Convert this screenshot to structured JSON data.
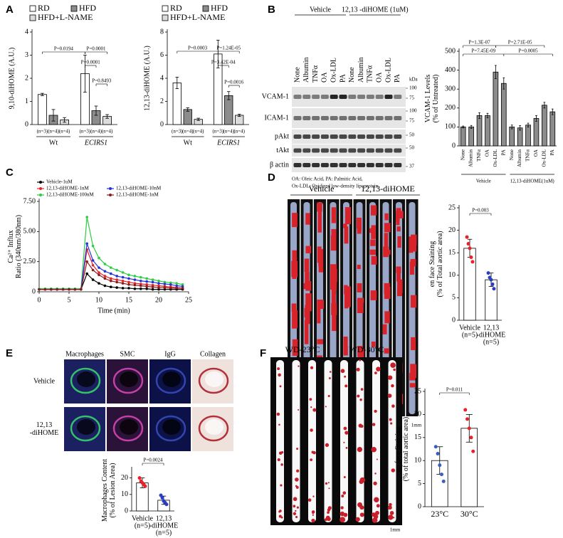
{
  "panel_labels": [
    "A",
    "B",
    "C",
    "D",
    "E",
    "F"
  ],
  "chart_data": [
    {
      "type": "bar",
      "ylabel": "9,10-diHOME (A.U.)",
      "categories": [
        "Wt",
        "ECIRS1"
      ],
      "series": [
        {
          "name": "RD",
          "color": "#ffffff",
          "values": [
            1.3,
            2.2
          ],
          "errors": [
            0.05,
            0.8
          ],
          "n": [
            "(n=3)",
            "(n=3)"
          ]
        },
        {
          "name": "HFD",
          "color": "#8c8c8c",
          "values": [
            0.4,
            0.6
          ],
          "errors": [
            0.25,
            0.2
          ],
          "n": [
            "(n=4)",
            "(n=4)"
          ]
        },
        {
          "name": "HFD+L-NAME",
          "color": "#dcdcdc",
          "values": [
            0.2,
            0.35
          ],
          "errors": [
            0.1,
            0.08
          ],
          "n": [
            "(n=4)",
            "(n=4)"
          ]
        }
      ],
      "ylim": [
        0,
        4
      ],
      "yticks": [
        0,
        1,
        2,
        3,
        4
      ],
      "annotations": [
        "P=0.0194",
        "P=0.0001",
        "P=0.0001",
        "P=0.8493"
      ]
    },
    {
      "type": "bar",
      "ylabel": "12,13-diHOME (A.U.)",
      "categories": [
        "Wt",
        "ECIRS1"
      ],
      "series": [
        {
          "name": "RD",
          "color": "#ffffff",
          "values": [
            3.6,
            6.1
          ],
          "errors": [
            0.5,
            1.2
          ],
          "n": [
            "(n=3)",
            "(n=3)"
          ]
        },
        {
          "name": "HFD",
          "color": "#8c8c8c",
          "values": [
            1.3,
            2.5
          ],
          "errors": [
            0.15,
            0.35
          ],
          "n": [
            "(n=4)",
            "(n=4)"
          ]
        },
        {
          "name": "HFD+L-NAME",
          "color": "#dcdcdc",
          "values": [
            0.45,
            0.8
          ],
          "errors": [
            0.1,
            0.1
          ],
          "n": [
            "(n=4)",
            "(n=4)"
          ]
        }
      ],
      "ylim": [
        0,
        8
      ],
      "yticks": [
        0,
        2,
        4,
        6,
        8
      ],
      "annotations": [
        "P=0.0003",
        "P=1.24E-05",
        "P=3.42E-04",
        "P=0.0016"
      ]
    },
    {
      "type": "bar",
      "ylabel": [
        "VCAM-1 Levels",
        "(% of Untreated)"
      ],
      "categories": [
        "None",
        "Albumin",
        "TNFα",
        "OA",
        "Ox-LDL",
        "PA",
        "None",
        "Albumin",
        "TNFα",
        "OA",
        "Ox-LDL",
        "PA"
      ],
      "values": [
        100,
        100,
        160,
        160,
        390,
        330,
        100,
        95,
        110,
        145,
        215,
        180
      ],
      "errors": [
        5,
        8,
        15,
        12,
        35,
        30,
        10,
        12,
        10,
        15,
        15,
        15
      ],
      "groups": [
        "Vehicle",
        "12,13-diHOME(1uM)"
      ],
      "color": "#8c8c8c",
      "ylim": [
        0,
        500
      ],
      "yticks": [
        0,
        100,
        200,
        300,
        400,
        500
      ],
      "annotations": [
        "P=1.3E-07",
        "P=7.45E-09",
        "P=2.71E-05",
        "P=0.0005"
      ]
    },
    {
      "type": "line",
      "xlabel": "Time (min)",
      "ylabel": [
        "Ca²⁺ Influx",
        "Ratio (340nm/380nm)"
      ],
      "x": [
        0,
        1,
        2,
        3,
        4,
        5,
        6,
        7,
        8,
        9,
        10,
        11,
        12,
        13,
        14,
        15,
        16,
        17,
        18,
        19,
        20,
        21,
        22,
        23,
        24
      ],
      "series": [
        {
          "name": "Vehicle-1uM",
          "color": "#000000",
          "values": [
            0.2,
            0.2,
            0.2,
            0.2,
            0.2,
            0.2,
            0.2,
            0.2,
            1.5,
            1.0,
            0.7,
            0.5,
            0.4,
            0.35,
            0.3,
            0.3,
            0.25,
            0.25,
            0.25,
            0.2,
            0.2,
            0.2,
            0.2,
            0.2,
            0.2
          ]
        },
        {
          "name": "12,13-diHOME-1nM",
          "color": "#e8222a",
          "values": [
            0.2,
            0.2,
            0.2,
            0.2,
            0.2,
            0.2,
            0.2,
            0.2,
            3.5,
            2.2,
            1.6,
            1.3,
            1.1,
            1.0,
            0.9,
            0.8,
            0.7,
            0.65,
            0.6,
            0.55,
            0.5,
            0.45,
            0.4,
            0.35,
            0.3
          ]
        },
        {
          "name": "12,13-diHOME-100nM",
          "color": "#2ecc40",
          "values": [
            0.25,
            0.25,
            0.25,
            0.25,
            0.25,
            0.25,
            0.25,
            0.25,
            6.2,
            3.8,
            2.8,
            2.3,
            2.0,
            1.8,
            1.6,
            1.4,
            1.3,
            1.2,
            1.1,
            1.0,
            0.9,
            0.8,
            0.75,
            0.7,
            0.6
          ]
        },
        {
          "name": "12,13-diHOME-10nM",
          "color": "#2233dd",
          "values": [
            0.2,
            0.2,
            0.2,
            0.2,
            0.2,
            0.2,
            0.2,
            0.2,
            4.0,
            2.6,
            2.0,
            1.7,
            1.5,
            1.3,
            1.2,
            1.1,
            1.0,
            0.9,
            0.85,
            0.8,
            0.7,
            0.65,
            0.6,
            0.5,
            0.45
          ]
        },
        {
          "name": "12,13-diHOME-1nM",
          "color": "#8b1a1a",
          "values": [
            0.2,
            0.2,
            0.2,
            0.2,
            0.2,
            0.2,
            0.2,
            0.2,
            2.5,
            1.8,
            1.4,
            1.1,
            0.9,
            0.8,
            0.7,
            0.6,
            0.55,
            0.5,
            0.45,
            0.4,
            0.35,
            0.35,
            0.3,
            0.3,
            0.3
          ]
        }
      ],
      "xlim": [
        0,
        25
      ],
      "xticks": [
        0,
        5,
        10,
        15,
        20,
        25
      ],
      "ylim": [
        0,
        7.5
      ],
      "yticks": [
        0,
        {
          "value": 2.5,
          "label": "2.50"
        },
        {
          "value": 5,
          "label": "5.00"
        },
        {
          "value": 7.5,
          "label": "7.50"
        }
      ]
    },
    {
      "type": "bar",
      "ylabel": [
        "en face Staining",
        "(% of Total aortic area)"
      ],
      "categories": [
        [
          "Vehicle",
          "(n=5)"
        ],
        [
          "12,13",
          "-diHOME",
          "(n=5)"
        ]
      ],
      "values": [
        16,
        9
      ],
      "errors": [
        2,
        1.5
      ],
      "color": "#ffffff",
      "points": [
        [
          18.5,
          17,
          16,
          14,
          13
        ],
        [
          10.5,
          9.5,
          9,
          8,
          7
        ]
      ],
      "point_colors": [
        "#e8222a",
        "#2a3fbf"
      ],
      "ylim": [
        0,
        25
      ],
      "yticks": [
        0,
        5,
        10,
        15,
        20,
        25
      ],
      "annotations": [
        "P=0.003"
      ]
    },
    {
      "type": "bar",
      "ylabel": [
        "Macrophages Content",
        "(% of Lesion Area)"
      ],
      "categories": [
        [
          "Vehicle",
          "(n=5)"
        ],
        [
          "12,13",
          "-diHOME",
          "(n=5)"
        ]
      ],
      "values": [
        17,
        6.5
      ],
      "errors": [
        3,
        2.5
      ],
      "color": "#ffffff",
      "points": [
        [
          20,
          18,
          17,
          16,
          15
        ],
        [
          9.5,
          8,
          6,
          5,
          4
        ]
      ],
      "point_colors": [
        "#e8222a",
        "#2a3fbf"
      ],
      "ylim": [
        0,
        25
      ],
      "yticks": [
        0,
        10,
        20
      ],
      "annotations": [
        "P=0.0024"
      ]
    },
    {
      "type": "bar",
      "ylabel": [
        "en face Staining",
        "(% of total aortic area)"
      ],
      "categories": [
        "23°C",
        "30°C"
      ],
      "values": [
        10,
        17
      ],
      "errors": [
        3,
        3
      ],
      "color": "#ffffff",
      "points": [
        [
          13,
          11.5,
          9,
          7,
          5.5
        ],
        [
          21,
          19,
          17,
          15,
          12
        ]
      ],
      "point_colors": [
        "#3a5fbf",
        "#e8222a"
      ],
      "ylim": [
        0,
        25
      ],
      "yticks": [
        0,
        5,
        10,
        15,
        20,
        25
      ],
      "annotations": [
        "P=0.011"
      ]
    }
  ],
  "blot": {
    "groups": [
      "Vehicle",
      "12,13 -diHOME (1uM)"
    ],
    "lanes": [
      "None",
      "Albumin",
      "TNFα",
      "OA",
      "Ox-LDL",
      "PA",
      "None",
      "Albumin",
      "TNFα",
      "OA",
      "Ox-LDL",
      "PA"
    ],
    "rows": [
      "VCAM-1",
      "ICAM-1",
      "pAkt",
      "tAkt",
      "β actin"
    ],
    "kda_title": "kDa",
    "kda": [
      100,
      75,
      100,
      75,
      50,
      50,
      37
    ],
    "notes": [
      "OA: Oleic Acid, PA: Palmitic Acid,",
      "Ox-LDL: Oxidized low-density lipoprotein"
    ]
  },
  "panel_d": {
    "groups": [
      "Vehicle",
      "12,13-diHOME"
    ],
    "scale": "1mm"
  },
  "panel_e": {
    "columns": [
      "Macrophages",
      "SMC",
      "IgG",
      "Collagen"
    ],
    "rows": [
      [
        "Vehicle"
      ],
      [
        "12,13",
        "-diHOME"
      ]
    ]
  },
  "panel_f": {
    "groups": [
      "WD-23°C",
      "WD-30°C"
    ],
    "scale": "1mm"
  }
}
